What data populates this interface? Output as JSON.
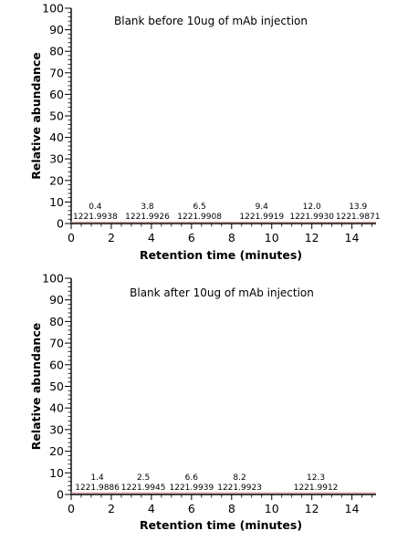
{
  "chart_data": [
    {
      "type": "line",
      "title": "Blank before 10ug of mAb injection",
      "xlabel": "Retention time (minutes)",
      "ylabel": "Relative abundance",
      "xlim": [
        0,
        15.2
      ],
      "ylim": [
        0,
        100
      ],
      "xticks": [
        "0",
        "2",
        "4",
        "6",
        "8",
        "10",
        "12",
        "14"
      ],
      "yticks": [
        "0",
        "10",
        "20",
        "30",
        "40",
        "50",
        "60",
        "70",
        "80",
        "90",
        "100"
      ],
      "line_color": "#d9a0a6",
      "series": [
        {
          "x": [
            0,
            15.2
          ],
          "y": [
            0.6,
            0.6
          ]
        }
      ],
      "annotations": [
        {
          "rt": "0.4",
          "mz": "1221.9938",
          "x": 1.2
        },
        {
          "rt": "3.8",
          "mz": "1221.9926",
          "x": 3.8
        },
        {
          "rt": "6.5",
          "mz": "1221.9908",
          "x": 6.4
        },
        {
          "rt": "9.4",
          "mz": "1221.9919",
          "x": 9.5
        },
        {
          "rt": "12.0",
          "mz": "1221.9930",
          "x": 12.0
        },
        {
          "rt": "13.9",
          "mz": "1221.9871",
          "x": 14.3
        }
      ]
    },
    {
      "type": "line",
      "title": "Blank after 10ug of mAb injection",
      "xlabel": "Retention time (minutes)",
      "ylabel": "Relative abundance",
      "xlim": [
        0,
        15.2
      ],
      "ylim": [
        0,
        100
      ],
      "xticks": [
        "0",
        "2",
        "4",
        "6",
        "8",
        "10",
        "12",
        "14"
      ],
      "yticks": [
        "0",
        "10",
        "20",
        "30",
        "40",
        "50",
        "60",
        "70",
        "80",
        "90",
        "100"
      ],
      "line_color": "#d9a0a6",
      "series": [
        {
          "x": [
            0,
            15.2
          ],
          "y": [
            0.8,
            0.8
          ]
        }
      ],
      "annotations": [
        {
          "rt": "1.4",
          "mz": "1221.9886",
          "x": 1.3
        },
        {
          "rt": "2.5",
          "mz": "1221.9945",
          "x": 3.6
        },
        {
          "rt": "6.6",
          "mz": "1221.9939",
          "x": 6.0
        },
        {
          "rt": "8.2",
          "mz": "1221.9923",
          "x": 8.4
        },
        {
          "rt": "12.3",
          "mz": "1221.9912",
          "x": 12.2
        }
      ]
    }
  ]
}
